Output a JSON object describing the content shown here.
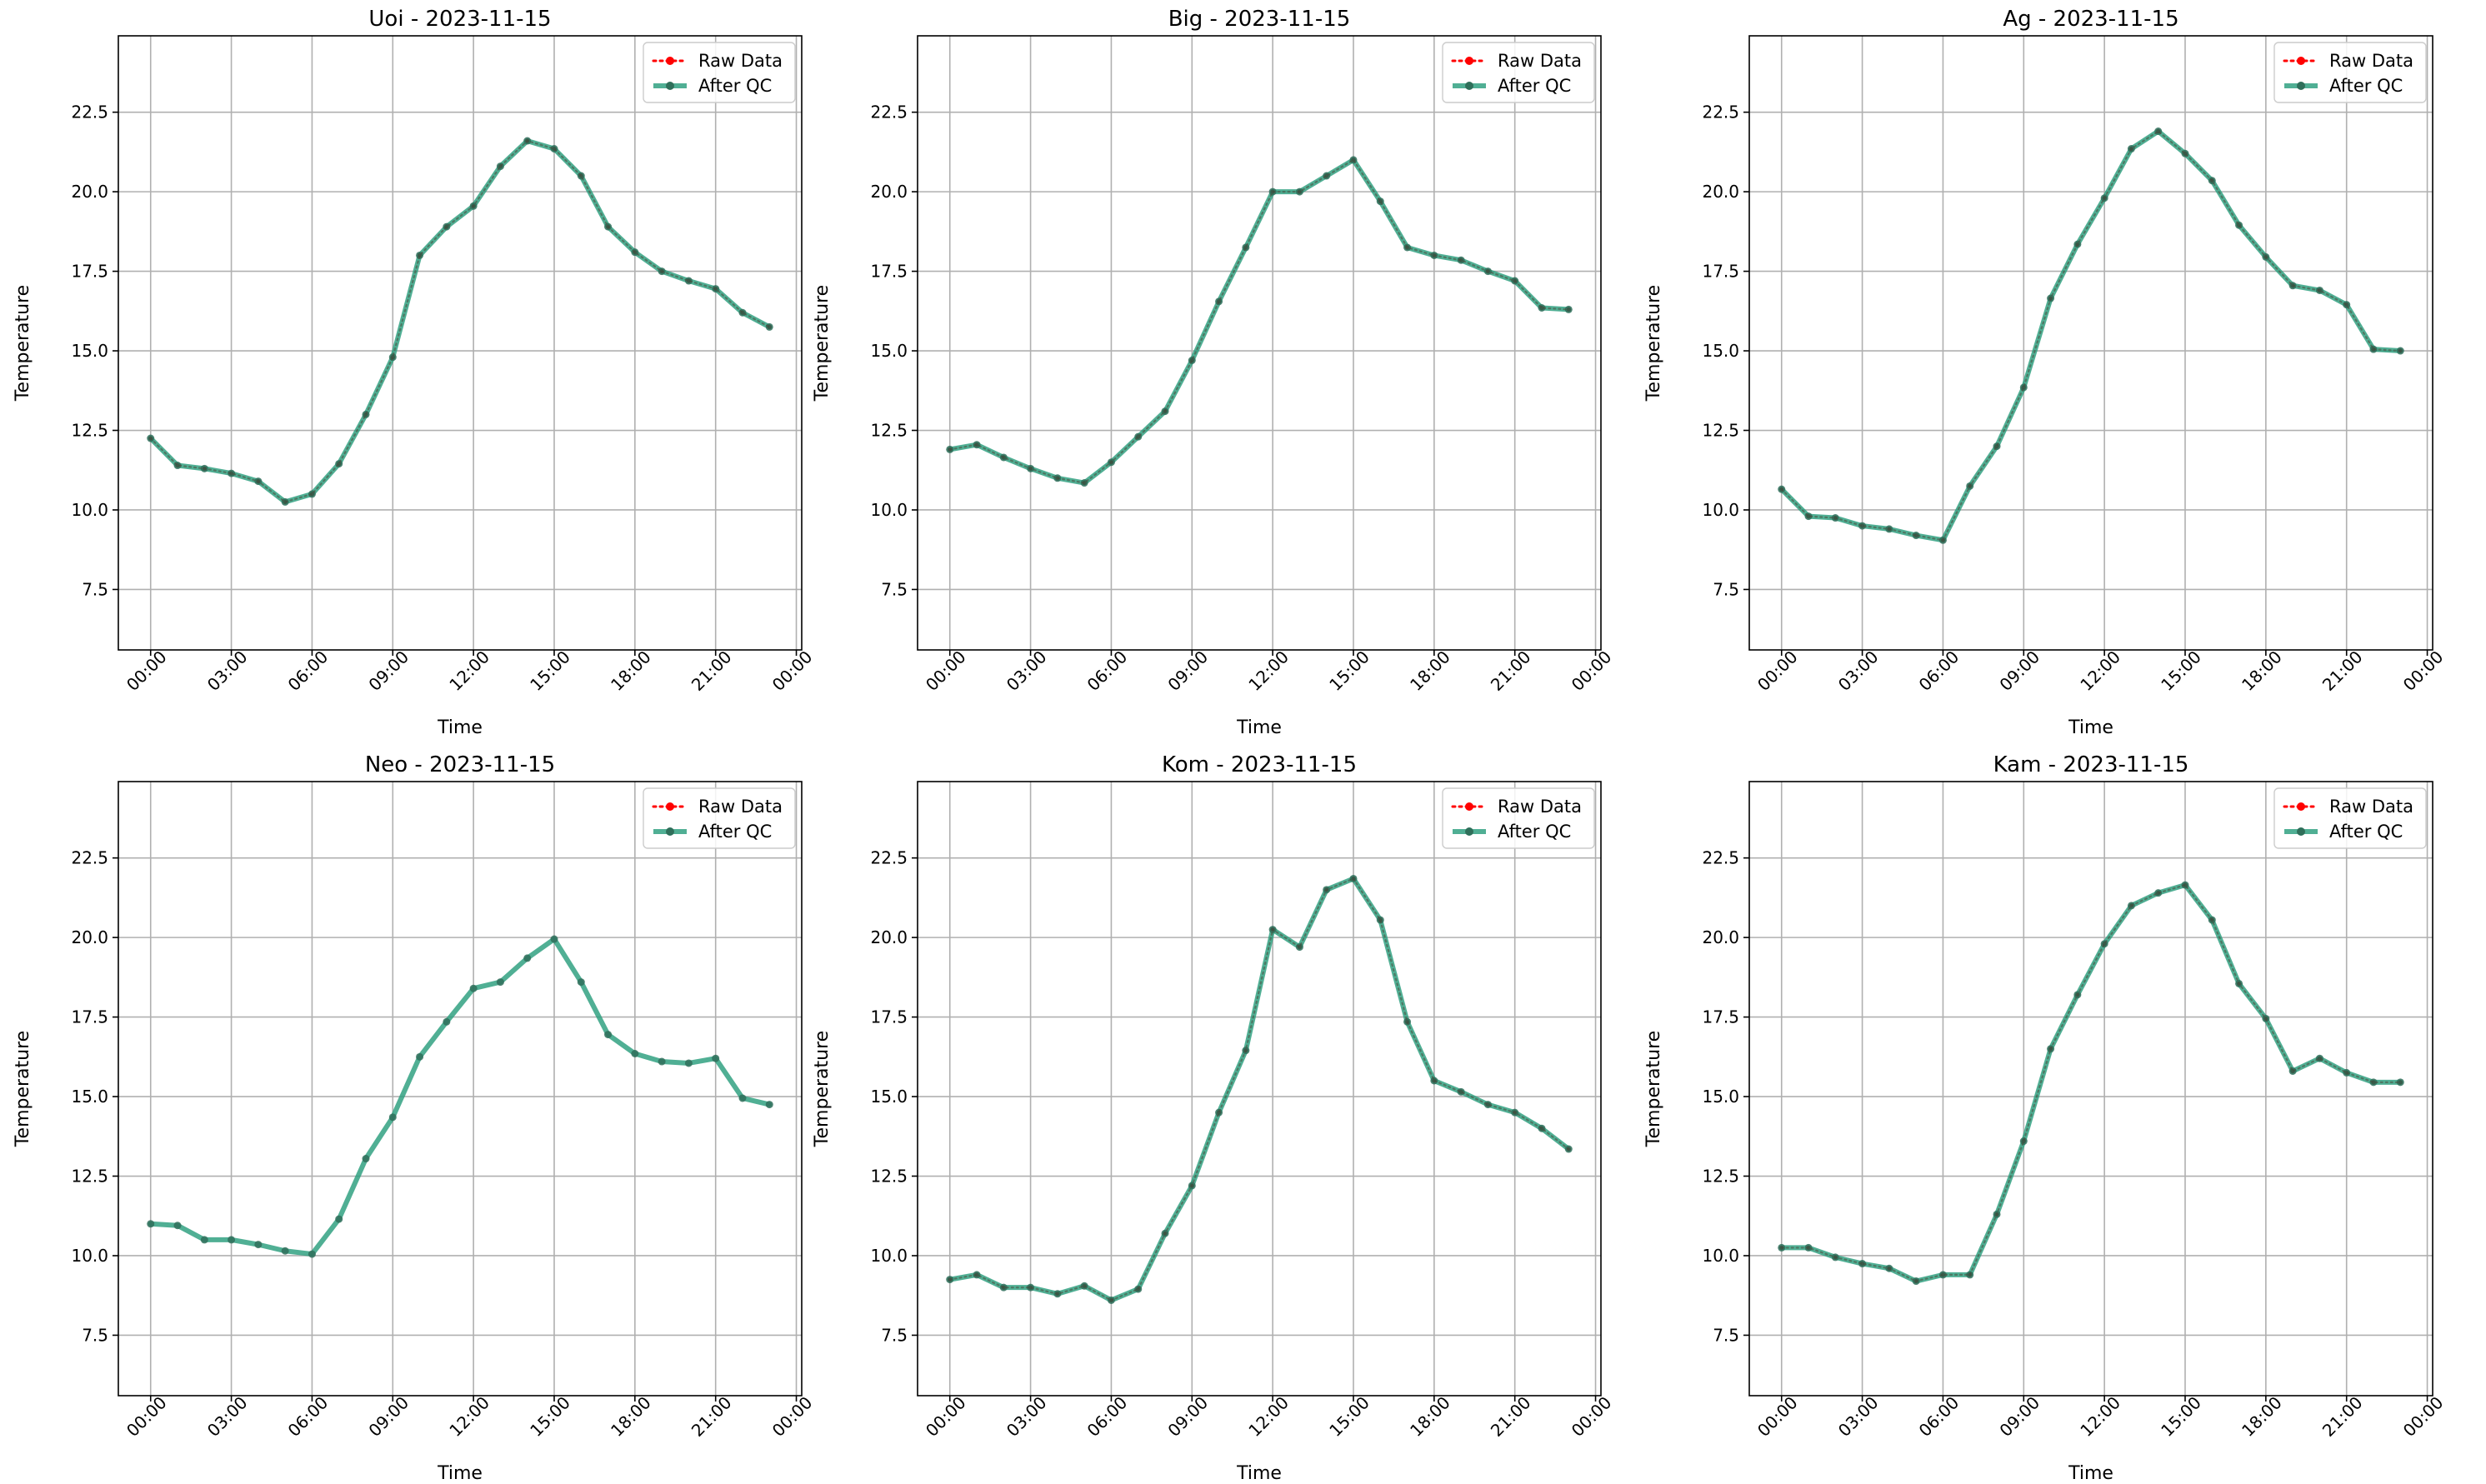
{
  "figure": {
    "background": "#ffffff"
  },
  "colors": {
    "raw": "#ff0000",
    "qc_line": "#2a9d7c",
    "qc_marker": "#2f6f5a",
    "grid": "#b0b0b0",
    "axes": "#000000"
  },
  "chart_data": [
    {
      "type": "line",
      "title": "Uoi - 2023-11-15",
      "xlabel": "Time",
      "ylabel": "Temperature",
      "x_ticks": [
        "00:00",
        "03:00",
        "06:00",
        "09:00",
        "12:00",
        "15:00",
        "18:00",
        "21:00",
        "00:00"
      ],
      "y_ticks": [
        "7.5",
        "10.0",
        "12.5",
        "15.0",
        "17.5",
        "20.0",
        "22.5"
      ],
      "ylim": [
        5.6,
        24.9
      ],
      "xlim_hours": [
        -1.2,
        24.2
      ],
      "x_hours": [
        0,
        1,
        2,
        3,
        4,
        5,
        6,
        7,
        8,
        9,
        10,
        11,
        12,
        13,
        14,
        15,
        16,
        17,
        18,
        19,
        20,
        21,
        22,
        23
      ],
      "legend": {
        "position": "upper right",
        "entries": [
          "Raw Data",
          "After QC"
        ]
      },
      "grid": true,
      "raw_visible": true,
      "series": [
        {
          "name": "Raw Data",
          "style": "dotted",
          "values": [
            12.25,
            11.4,
            11.3,
            11.15,
            10.9,
            10.25,
            10.5,
            11.45,
            13.0,
            14.8,
            18.0,
            18.9,
            19.55,
            20.8,
            21.6,
            21.35,
            20.5,
            18.9,
            18.1,
            17.5,
            17.2,
            16.95,
            16.2,
            15.75
          ]
        },
        {
          "name": "After QC",
          "style": "solid",
          "values": [
            12.25,
            11.4,
            11.3,
            11.15,
            10.9,
            10.25,
            10.5,
            11.45,
            13.0,
            14.8,
            18.0,
            18.9,
            19.55,
            20.8,
            21.6,
            21.35,
            20.5,
            18.9,
            18.1,
            17.5,
            17.2,
            16.95,
            16.2,
            15.75
          ]
        }
      ]
    },
    {
      "type": "line",
      "title": "Big - 2023-11-15",
      "xlabel": "Time",
      "ylabel": "Temperature",
      "x_ticks": [
        "00:00",
        "03:00",
        "06:00",
        "09:00",
        "12:00",
        "15:00",
        "18:00",
        "21:00",
        "00:00"
      ],
      "y_ticks": [
        "7.5",
        "10.0",
        "12.5",
        "15.0",
        "17.5",
        "20.0",
        "22.5"
      ],
      "ylim": [
        5.6,
        24.9
      ],
      "xlim_hours": [
        -1.2,
        24.2
      ],
      "x_hours": [
        0,
        1,
        2,
        3,
        4,
        5,
        6,
        7,
        8,
        9,
        10,
        11,
        12,
        13,
        14,
        15,
        16,
        17,
        18,
        19,
        20,
        21,
        22,
        23
      ],
      "legend": {
        "position": "upper right",
        "entries": [
          "Raw Data",
          "After QC"
        ]
      },
      "grid": true,
      "raw_visible": true,
      "series": [
        {
          "name": "Raw Data",
          "style": "dotted",
          "values": [
            11.9,
            12.05,
            11.65,
            11.3,
            11.0,
            10.85,
            11.5,
            12.3,
            13.1,
            14.7,
            16.55,
            18.25,
            20.0,
            20.0,
            20.5,
            21.0,
            19.7,
            18.25,
            18.0,
            17.85,
            17.5,
            17.2,
            16.35,
            16.3
          ]
        },
        {
          "name": "After QC",
          "style": "solid",
          "values": [
            11.9,
            12.05,
            11.65,
            11.3,
            11.0,
            10.85,
            11.5,
            12.3,
            13.1,
            14.7,
            16.55,
            18.25,
            20.0,
            20.0,
            20.5,
            21.0,
            19.7,
            18.25,
            18.0,
            17.85,
            17.5,
            17.2,
            16.35,
            16.3
          ]
        }
      ]
    },
    {
      "type": "line",
      "title": "Ag - 2023-11-15",
      "xlabel": "Time",
      "ylabel": "Temperature",
      "x_ticks": [
        "00:00",
        "03:00",
        "06:00",
        "09:00",
        "12:00",
        "15:00",
        "18:00",
        "21:00",
        "00:00"
      ],
      "y_ticks": [
        "7.5",
        "10.0",
        "12.5",
        "15.0",
        "17.5",
        "20.0",
        "22.5"
      ],
      "ylim": [
        5.6,
        24.9
      ],
      "xlim_hours": [
        -1.2,
        24.2
      ],
      "x_hours": [
        0,
        1,
        2,
        3,
        4,
        5,
        6,
        7,
        8,
        9,
        10,
        11,
        12,
        13,
        14,
        15,
        16,
        17,
        18,
        19,
        20,
        21,
        22,
        23
      ],
      "legend": {
        "position": "upper right",
        "entries": [
          "Raw Data",
          "After QC"
        ]
      },
      "grid": true,
      "raw_visible": true,
      "series": [
        {
          "name": "Raw Data",
          "style": "dotted",
          "values": [
            10.65,
            9.8,
            9.75,
            9.5,
            9.4,
            9.2,
            9.05,
            10.75,
            12.0,
            13.85,
            16.65,
            18.35,
            19.8,
            21.35,
            21.9,
            21.2,
            20.35,
            18.95,
            17.95,
            17.05,
            16.9,
            16.45,
            15.05,
            15.0
          ]
        },
        {
          "name": "After QC",
          "style": "solid",
          "values": [
            10.65,
            9.8,
            9.75,
            9.5,
            9.4,
            9.2,
            9.05,
            10.75,
            12.0,
            13.85,
            16.65,
            18.35,
            19.8,
            21.35,
            21.9,
            21.2,
            20.35,
            18.95,
            17.95,
            17.05,
            16.9,
            16.45,
            15.05,
            15.0
          ]
        }
      ]
    },
    {
      "type": "line",
      "title": "Neo - 2023-11-15",
      "xlabel": "Time",
      "ylabel": "Temperature",
      "x_ticks": [
        "00:00",
        "03:00",
        "06:00",
        "09:00",
        "12:00",
        "15:00",
        "18:00",
        "21:00",
        "00:00"
      ],
      "y_ticks": [
        "7.5",
        "10.0",
        "12.5",
        "15.0",
        "17.5",
        "20.0",
        "22.5"
      ],
      "ylim": [
        5.6,
        24.9
      ],
      "xlim_hours": [
        -1.2,
        24.2
      ],
      "x_hours": [
        0,
        1,
        2,
        3,
        4,
        5,
        6,
        7,
        8,
        9,
        10,
        11,
        12,
        13,
        14,
        15,
        16,
        17,
        18,
        19,
        20,
        21,
        22,
        23
      ],
      "legend": {
        "position": "upper right",
        "entries": [
          "Raw Data",
          "After QC"
        ]
      },
      "grid": true,
      "raw_visible": false,
      "series": [
        {
          "name": "Raw Data",
          "style": "dotted",
          "values": []
        },
        {
          "name": "After QC",
          "style": "solid",
          "values": [
            11.0,
            10.95,
            10.5,
            10.5,
            10.35,
            10.15,
            10.05,
            11.15,
            13.05,
            14.35,
            16.25,
            17.35,
            18.4,
            18.6,
            19.35,
            19.95,
            18.6,
            16.95,
            16.35,
            16.1,
            16.05,
            16.2,
            14.95,
            14.75
          ]
        }
      ]
    },
    {
      "type": "line",
      "title": "Kom - 2023-11-15",
      "xlabel": "Time",
      "ylabel": "Temperature",
      "x_ticks": [
        "00:00",
        "03:00",
        "06:00",
        "09:00",
        "12:00",
        "15:00",
        "18:00",
        "21:00",
        "00:00"
      ],
      "y_ticks": [
        "7.5",
        "10.0",
        "12.5",
        "15.0",
        "17.5",
        "20.0",
        "22.5"
      ],
      "ylim": [
        5.6,
        24.9
      ],
      "xlim_hours": [
        -1.2,
        24.2
      ],
      "x_hours": [
        0,
        1,
        2,
        3,
        4,
        5,
        6,
        7,
        8,
        9,
        10,
        11,
        12,
        13,
        14,
        15,
        16,
        17,
        18,
        19,
        20,
        21,
        22,
        23
      ],
      "legend": {
        "position": "upper right",
        "entries": [
          "Raw Data",
          "After QC"
        ]
      },
      "grid": true,
      "raw_visible": true,
      "series": [
        {
          "name": "Raw Data",
          "style": "dotted",
          "values": [
            9.25,
            9.4,
            9.0,
            9.0,
            8.8,
            9.05,
            8.6,
            8.95,
            10.7,
            12.2,
            14.5,
            16.45,
            20.25,
            19.7,
            21.5,
            21.85,
            20.55,
            17.35,
            15.5,
            15.15,
            14.75,
            14.5,
            14.0,
            13.35
          ]
        },
        {
          "name": "After QC",
          "style": "solid",
          "values": [
            9.25,
            9.4,
            9.0,
            9.0,
            8.8,
            9.05,
            8.6,
            8.95,
            10.7,
            12.2,
            14.5,
            16.45,
            20.25,
            19.7,
            21.5,
            21.85,
            20.55,
            17.35,
            15.5,
            15.15,
            14.75,
            14.5,
            14.0,
            13.35
          ]
        }
      ]
    },
    {
      "type": "line",
      "title": "Kam - 2023-11-15",
      "xlabel": "Time",
      "ylabel": "Temperature",
      "x_ticks": [
        "00:00",
        "03:00",
        "06:00",
        "09:00",
        "12:00",
        "15:00",
        "18:00",
        "21:00",
        "00:00"
      ],
      "y_ticks": [
        "7.5",
        "10.0",
        "12.5",
        "15.0",
        "17.5",
        "20.0",
        "22.5"
      ],
      "ylim": [
        5.6,
        24.9
      ],
      "xlim_hours": [
        -1.2,
        24.2
      ],
      "x_hours": [
        0,
        1,
        2,
        3,
        4,
        5,
        6,
        7,
        8,
        9,
        10,
        11,
        12,
        13,
        14,
        15,
        16,
        17,
        18,
        19,
        20,
        21,
        22,
        23
      ],
      "legend": {
        "position": "upper right",
        "entries": [
          "Raw Data",
          "After QC"
        ]
      },
      "grid": true,
      "raw_visible": true,
      "series": [
        {
          "name": "Raw Data",
          "style": "dotted",
          "values": [
            10.25,
            10.25,
            9.95,
            9.75,
            9.6,
            9.2,
            9.4,
            9.4,
            11.3,
            13.6,
            16.5,
            18.2,
            19.8,
            21.0,
            21.4,
            21.65,
            20.55,
            18.55,
            17.45,
            15.8,
            16.2,
            15.75,
            15.45,
            15.45
          ]
        },
        {
          "name": "After QC",
          "style": "solid",
          "values": [
            10.25,
            10.25,
            9.95,
            9.75,
            9.6,
            9.2,
            9.4,
            9.4,
            11.3,
            13.6,
            16.5,
            18.2,
            19.8,
            21.0,
            21.4,
            21.65,
            20.55,
            18.55,
            17.45,
            15.8,
            16.2,
            15.75,
            15.45,
            15.45
          ]
        }
      ]
    }
  ]
}
